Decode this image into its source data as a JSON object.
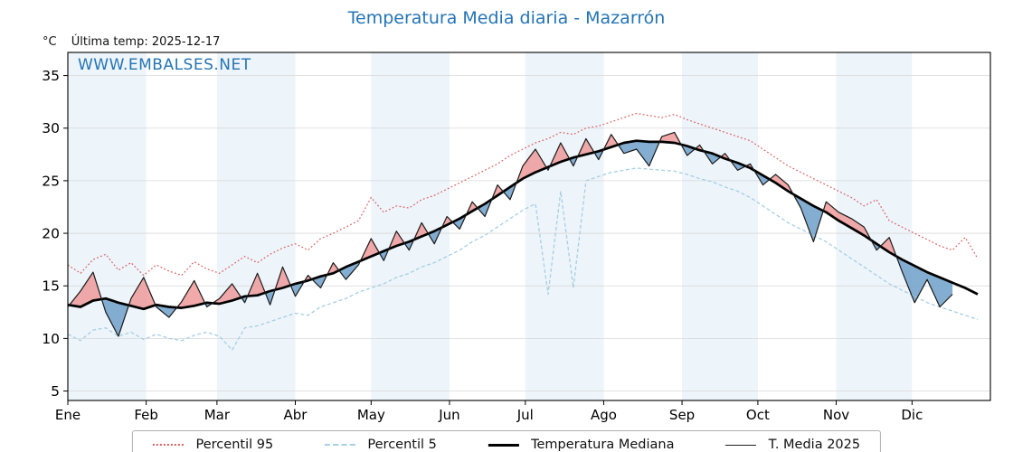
{
  "page": {
    "title": "Temperatura Media diaria - Mazarrón",
    "unit_label": "°C",
    "last_temp_label": "Última temp: 2025-12-17",
    "watermark": "WWW.EMBALSES.NET"
  },
  "chart_data": {
    "type": "line",
    "title": "Temperatura Media diaria - Mazarrón",
    "ylabel": "°C",
    "xlabel": "",
    "legend_position": "bottom",
    "grid": true,
    "xlim": [
      0,
      365
    ],
    "ylim": [
      4.1,
      37.2
    ],
    "yticks": [
      5,
      10,
      15,
      20,
      25,
      30,
      35
    ],
    "categories": [
      "Ene",
      "Feb",
      "Mar",
      "Abr",
      "May",
      "Jun",
      "Jul",
      "Ago",
      "Sep",
      "Oct",
      "Nov",
      "Dic"
    ],
    "month_start_days": [
      0,
      31,
      59,
      90,
      120,
      151,
      181,
      212,
      243,
      273,
      304,
      334
    ],
    "band_color": "#edf4fa",
    "x": [
      0,
      5,
      10,
      15,
      20,
      25,
      30,
      35,
      40,
      45,
      50,
      55,
      60,
      65,
      70,
      75,
      80,
      85,
      90,
      95,
      100,
      105,
      110,
      115,
      120,
      125,
      130,
      135,
      140,
      145,
      150,
      155,
      160,
      165,
      170,
      175,
      180,
      185,
      190,
      195,
      200,
      205,
      210,
      215,
      220,
      225,
      230,
      235,
      240,
      245,
      250,
      255,
      260,
      265,
      270,
      275,
      280,
      285,
      290,
      295,
      300,
      305,
      310,
      315,
      320,
      325,
      330,
      335,
      340,
      345,
      350,
      355,
      360
    ],
    "series": [
      {
        "name": "Percentil 95",
        "color": "#d95f5f",
        "style": "dotted",
        "values": [
          17.0,
          16.2,
          17.5,
          18.0,
          16.5,
          17.2,
          16.0,
          17.0,
          16.4,
          16.0,
          17.3,
          16.6,
          16.2,
          17.0,
          17.8,
          17.2,
          18.0,
          18.6,
          19.0,
          18.4,
          19.5,
          20.0,
          20.6,
          21.2,
          23.4,
          22.0,
          22.6,
          22.4,
          23.2,
          23.6,
          24.2,
          24.8,
          25.4,
          26.0,
          26.6,
          27.4,
          28.0,
          28.6,
          29.0,
          29.6,
          29.4,
          30.0,
          30.2,
          30.6,
          31.0,
          31.4,
          31.2,
          31.0,
          31.3,
          30.8,
          30.4,
          30.0,
          29.6,
          29.2,
          28.8,
          28.0,
          27.2,
          26.4,
          25.8,
          25.2,
          24.6,
          24.0,
          23.4,
          22.6,
          23.2,
          21.2,
          20.6,
          20.0,
          19.4,
          18.8,
          18.4,
          19.6,
          17.6
        ]
      },
      {
        "name": "Percentil 5",
        "color": "#a6cfe3",
        "style": "dashed",
        "values": [
          10.4,
          9.8,
          10.8,
          11.0,
          10.2,
          10.6,
          9.9,
          10.4,
          10.0,
          9.8,
          10.3,
          10.6,
          10.2,
          8.9,
          11.0,
          11.2,
          11.6,
          12.0,
          12.4,
          12.2,
          13.0,
          13.4,
          13.8,
          14.4,
          14.8,
          15.2,
          15.8,
          16.2,
          16.8,
          17.2,
          17.8,
          18.4,
          19.2,
          19.8,
          20.6,
          21.4,
          22.2,
          22.8,
          14.2,
          24.0,
          14.8,
          25.0,
          25.4,
          25.8,
          26.0,
          26.2,
          26.1,
          26.0,
          25.9,
          25.6,
          25.2,
          24.9,
          24.4,
          24.0,
          23.4,
          22.6,
          21.8,
          21.0,
          20.4,
          19.8,
          19.2,
          18.4,
          17.6,
          16.8,
          16.0,
          15.2,
          14.6,
          14.0,
          13.4,
          13.0,
          12.6,
          12.2,
          11.8
        ]
      },
      {
        "name": "Temperatura Mediana",
        "color": "#000000",
        "style": "solid-thick",
        "values": [
          13.2,
          13.0,
          13.6,
          13.8,
          13.4,
          13.1,
          12.8,
          13.2,
          13.0,
          12.9,
          13.1,
          13.4,
          13.3,
          13.6,
          14.0,
          14.1,
          14.5,
          14.8,
          15.2,
          15.5,
          15.9,
          16.2,
          16.8,
          17.3,
          17.8,
          18.3,
          18.8,
          19.2,
          19.7,
          20.2,
          20.8,
          21.4,
          22.1,
          22.8,
          23.6,
          24.4,
          25.2,
          25.8,
          26.3,
          26.8,
          27.2,
          27.5,
          27.8,
          28.2,
          28.6,
          28.8,
          28.7,
          28.7,
          28.6,
          28.3,
          27.9,
          27.6,
          27.1,
          26.7,
          26.2,
          25.5,
          24.8,
          24.0,
          23.3,
          22.6,
          22.0,
          21.2,
          20.5,
          19.8,
          19.0,
          18.2,
          17.5,
          16.9,
          16.3,
          15.8,
          15.3,
          14.8,
          14.2
        ]
      },
      {
        "name": "T. Media 2025",
        "color": "#1a1a1a",
        "style": "solid-thin",
        "values": [
          13.0,
          14.5,
          16.3,
          12.5,
          10.2,
          13.8,
          15.8,
          13.0,
          12.0,
          13.5,
          15.5,
          13.0,
          13.8,
          15.2,
          13.4,
          16.2,
          13.2,
          16.8,
          14.0,
          16.0,
          14.8,
          17.2,
          15.6,
          17.0,
          19.5,
          17.4,
          20.2,
          18.4,
          21.0,
          19.0,
          21.6,
          20.4,
          23.0,
          21.6,
          24.6,
          23.2,
          26.4,
          28.0,
          26.0,
          28.6,
          26.4,
          29.0,
          27.0,
          29.4,
          27.6,
          28.0,
          26.4,
          29.2,
          29.6,
          27.4,
          28.4,
          26.6,
          27.6,
          26.0,
          26.6,
          24.6,
          25.6,
          24.6,
          22.4,
          19.2,
          23.0,
          22.0,
          21.4,
          20.6,
          18.4,
          19.6,
          16.4,
          13.4,
          15.6,
          13.0,
          14.2,
          null,
          null
        ]
      }
    ],
    "fill_between": {
      "between": [
        "T. Media 2025",
        "Temperatura Mediana"
      ],
      "above_color": "#ef9a9a",
      "below_color": "#76a5cc"
    }
  }
}
